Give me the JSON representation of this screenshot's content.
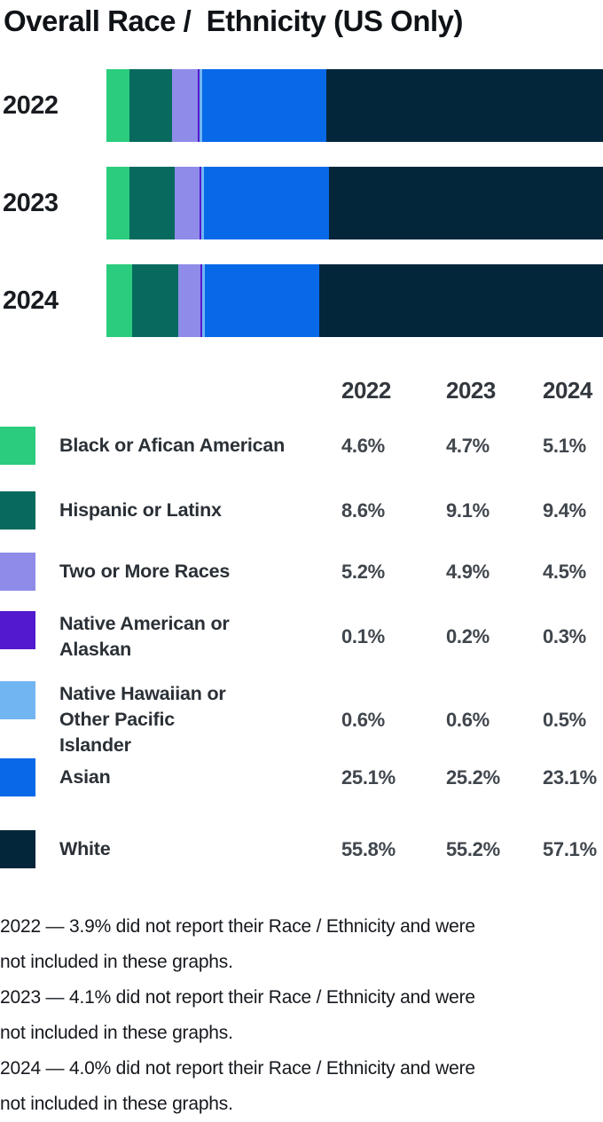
{
  "title": "Overall Race /  Ethnicity (US Only)",
  "chart_data": {
    "type": "bar",
    "orientation": "horizontal",
    "stacked": true,
    "normalized_to_100_percent": true,
    "title": "Overall Race /  Ethnicity (US Only)",
    "categories": [
      "2022",
      "2023",
      "2024"
    ],
    "series": [
      {
        "name": "Black or Afican American",
        "color": "#2bcc7d",
        "values": [
          4.6,
          4.7,
          5.1
        ]
      },
      {
        "name": "Hispanic or Latinx",
        "color": "#086a5f",
        "values": [
          8.6,
          9.1,
          9.4
        ]
      },
      {
        "name": "Two or More Races",
        "color": "#8e8be9",
        "values": [
          5.2,
          4.9,
          4.5
        ]
      },
      {
        "name": "Native American or Alaskan",
        "color": "#5219ce",
        "values": [
          0.1,
          0.2,
          0.3
        ],
        "label_display": "Native American or\nAlaskan"
      },
      {
        "name": "Native Hawaiian or Other Pacific Islander",
        "color": "#72b5f3",
        "values": [
          0.6,
          0.6,
          0.5
        ],
        "label_display": "Native Hawaiian or\nOther Pacific\nIslander"
      },
      {
        "name": "Asian",
        "color": "#0869e8",
        "values": [
          25.1,
          25.2,
          23.1
        ]
      },
      {
        "name": "White",
        "color": "#04263b",
        "values": [
          55.8,
          55.2,
          57.1
        ]
      }
    ],
    "unit": "%",
    "xlim": [
      0,
      100
    ],
    "axes_shown": false,
    "grid": false,
    "legend_position": "bottom-table-with-values"
  },
  "footnotes": [
    "2022 — 3.9% did not report their Race / Ethnicity and were\nnot included in these graphs.",
    "2023 — 4.1% did not report their Race / Ethnicity and were\nnot included in these graphs.",
    "2024 — 4.0% did not report their Race / Ethnicity and were\nnot included in these graphs."
  ]
}
